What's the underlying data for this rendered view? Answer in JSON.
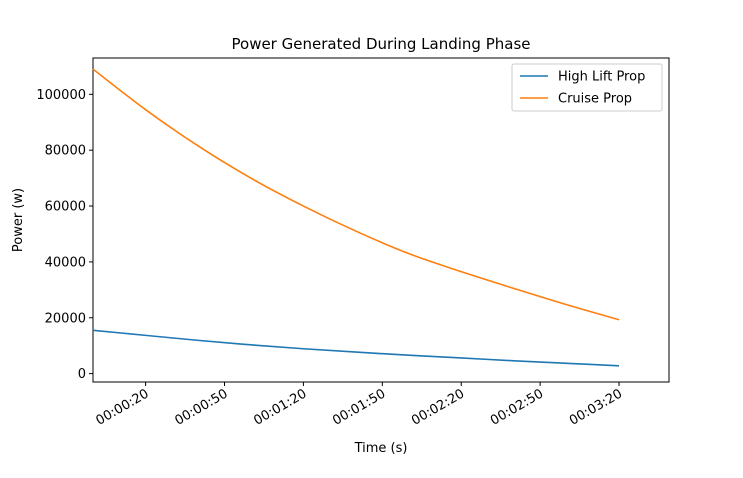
{
  "chart_data": {
    "type": "line",
    "title": "Power Generated During Landing Phase",
    "xlabel": "Time (s)",
    "ylabel": "Power (w)",
    "x_unit": "seconds",
    "xlim": [
      0,
      219
    ],
    "ylim": [
      -3000,
      113000
    ],
    "grid": false,
    "legend_position": "top-right",
    "x_ticks": [
      {
        "value": 20,
        "label": "00:00:20"
      },
      {
        "value": 50,
        "label": "00:00:50"
      },
      {
        "value": 80,
        "label": "00:01:20"
      },
      {
        "value": 110,
        "label": "00:01:50"
      },
      {
        "value": 140,
        "label": "00:02:20"
      },
      {
        "value": 170,
        "label": "00:02:50"
      },
      {
        "value": 200,
        "label": "00:03:20"
      }
    ],
    "y_ticks": [
      {
        "value": 0,
        "label": "0"
      },
      {
        "value": 20000,
        "label": "20000"
      },
      {
        "value": 40000,
        "label": "40000"
      },
      {
        "value": 60000,
        "label": "60000"
      },
      {
        "value": 80000,
        "label": "80000"
      },
      {
        "value": 100000,
        "label": "100000"
      }
    ],
    "x": [
      0,
      20,
      40,
      60,
      80,
      100,
      120,
      140,
      160,
      180,
      200
    ],
    "series": [
      {
        "name": "High Lift Prop",
        "color": "#1f77b4",
        "values": [
          15500,
          13700,
          11900,
          10300,
          8900,
          7700,
          6600,
          5600,
          4600,
          3700,
          2800
        ]
      },
      {
        "name": "Cruise Prop",
        "color": "#ff7f0e",
        "values": [
          109000,
          94500,
          81500,
          70000,
          60000,
          51000,
          43000,
          36500,
          30500,
          24700,
          19300
        ]
      }
    ]
  }
}
